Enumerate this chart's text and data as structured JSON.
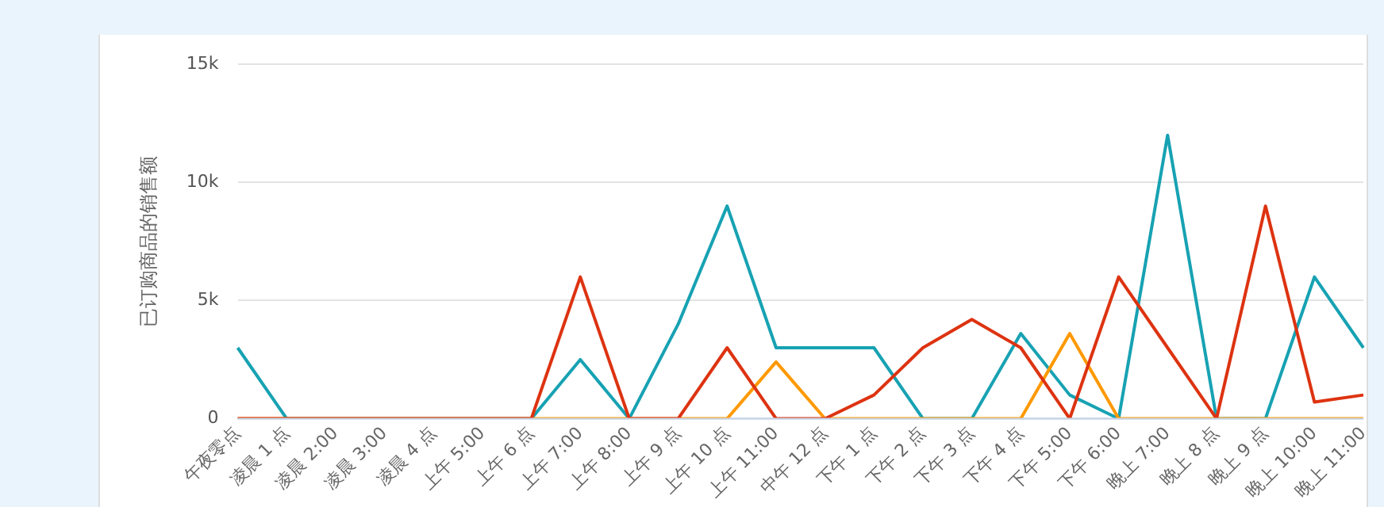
{
  "chart_data": {
    "type": "line",
    "ylabel": "已订购商品的销售额",
    "categories": [
      "午夜零点",
      "凌晨 1 点",
      "凌晨 2:00",
      "凌晨 3:00",
      "凌晨 4 点",
      "上午 5:00",
      "上午 6 点",
      "上午 7:00",
      "上午 8:00",
      "上午 9 点",
      "上午 10 点",
      "上午 11:00",
      "中午 12 点",
      "下午 1 点",
      "下午 2 点",
      "下午 3 点",
      "下午 4 点",
      "下午 5:00",
      "下午 6:00",
      "晚上 7:00",
      "晚上 8 点",
      "晚上 9 点",
      "晚上 10:00",
      "晚上 11:00"
    ],
    "series": [
      {
        "color": "#dd3311",
        "values": [
          0,
          0,
          0,
          0,
          0,
          0,
          0,
          6000,
          0,
          0,
          3000,
          0,
          0,
          1000,
          3000,
          4200,
          3000,
          0,
          6000,
          3000,
          0,
          9000,
          700,
          1000
        ]
      },
      {
        "color": "#ff9900",
        "values": [
          0,
          0,
          0,
          0,
          0,
          0,
          0,
          0,
          0,
          0,
          0,
          2400,
          0,
          0,
          0,
          0,
          0,
          3600,
          0,
          0,
          0,
          0,
          0,
          0
        ]
      },
      {
        "color": "#17a2b3",
        "values": [
          3000,
          0,
          0,
          0,
          0,
          0,
          0,
          2500,
          0,
          4000,
          9000,
          3000,
          3000,
          3000,
          0,
          0,
          3600,
          1000,
          0,
          12000,
          0,
          0,
          6000,
          3000
        ]
      }
    ],
    "ylim": [
      0,
      15000
    ],
    "yticks": [
      0,
      {
        "value": 5000,
        "label": "5k"
      },
      {
        "value": 10000,
        "label": "10k"
      },
      {
        "value": 15000,
        "label": "15k"
      }
    ],
    "grid": "y",
    "legend": false,
    "marker": "none",
    "line_style": "solid"
  }
}
